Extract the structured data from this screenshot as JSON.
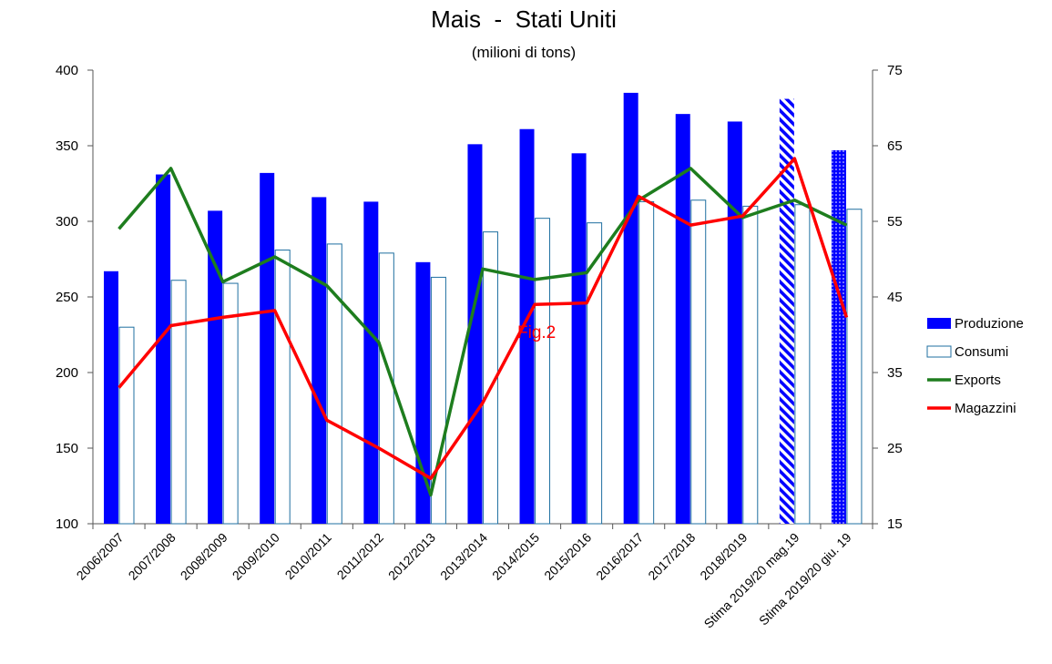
{
  "chart_data": {
    "type": "bar",
    "title": "Mais  -  Stati Uniti",
    "subtitle": "(milioni di tons)",
    "categories": [
      "2006/2007",
      "2007/2008",
      "2008/2009",
      "2009/2010",
      "2010/2011",
      "2011/2012",
      "2012/2013",
      "2013/2014",
      "2014/2015",
      "2015/2016",
      "2016/2017",
      "2017/2018",
      "2018/2019",
      "Stima 2019/20 mag.19",
      "Stima 2019/20 giu. 19"
    ],
    "y_left": {
      "ylim": [
        100,
        400
      ],
      "ticks": [
        100,
        150,
        200,
        250,
        300,
        350,
        400
      ]
    },
    "y_right": {
      "ylim": [
        15,
        75
      ],
      "ticks": [
        15,
        25,
        35,
        45,
        55,
        65,
        75
      ]
    },
    "grid": false,
    "legend_position": "right",
    "series": [
      {
        "name": "Produzione",
        "type": "bar",
        "axis": "left",
        "color": "#0000ff",
        "values": [
          267,
          331,
          307,
          332,
          316,
          313,
          273,
          351,
          361,
          345,
          385,
          371,
          366,
          381,
          347
        ],
        "patterns": [
          "solid",
          "solid",
          "solid",
          "solid",
          "solid",
          "solid",
          "solid",
          "solid",
          "solid",
          "solid",
          "solid",
          "solid",
          "solid",
          "diagonal-hatch",
          "dotted"
        ]
      },
      {
        "name": "Consumi",
        "type": "bar",
        "axis": "left",
        "color": "#1f6fa0",
        "fill": "#ffffff",
        "values": [
          230,
          261,
          259,
          281,
          285,
          279,
          263,
          293,
          302,
          299,
          313,
          314,
          310,
          311,
          308
        ]
      },
      {
        "name": "Exports",
        "type": "line",
        "axis": "right",
        "color": "#1e7d1e",
        "values": [
          54,
          62,
          47,
          50.3,
          46.5,
          39,
          18.8,
          48.7,
          47.3,
          48.2,
          57.8,
          62,
          55.5,
          57.8,
          54.5
        ]
      },
      {
        "name": "Magazzini",
        "type": "line",
        "axis": "right",
        "color": "#ff0000",
        "values": [
          33,
          41.2,
          42.3,
          43.2,
          28.7,
          25,
          21,
          31,
          44,
          44.2,
          58.3,
          54.5,
          55.7,
          63.3,
          42.3
        ]
      }
    ],
    "annotations": [
      {
        "text": "Fig.2",
        "color": "#ff0000"
      }
    ]
  }
}
